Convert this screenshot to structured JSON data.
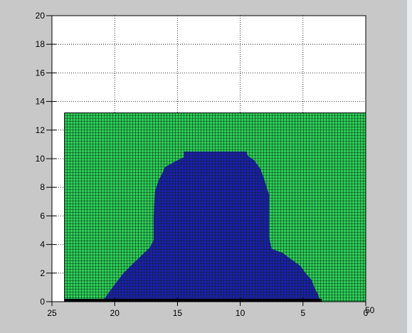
{
  "chart_data": {
    "type": "heatmap",
    "title": "",
    "xlabel": "",
    "ylabel": "",
    "x_direction": "reversed",
    "xlim": [
      0,
      25
    ],
    "ylim": [
      0,
      20
    ],
    "grid": true,
    "x_ticks": [
      "25",
      "20",
      "15",
      "10",
      "5",
      "0"
    ],
    "y_ticks": [
      "0",
      "2",
      "4",
      "6",
      "8",
      "10",
      "12",
      "14",
      "16",
      "18",
      "20"
    ],
    "extra_axis_label": "50",
    "surface": {
      "x_range": [
        0,
        24
      ],
      "height": 13.2,
      "color": "#2ecf5a"
    },
    "dark_region": {
      "color": "#1d1db2",
      "outline": [
        [
          3.6,
          0
        ],
        [
          3.8,
          0.5
        ],
        [
          4.1,
          1
        ],
        [
          4.3,
          1.5
        ],
        [
          4.8,
          2
        ],
        [
          5.2,
          2.5
        ],
        [
          6,
          3
        ],
        [
          6.6,
          3.4
        ],
        [
          7.5,
          3.7
        ],
        [
          7.7,
          4.5
        ],
        [
          7.7,
          6
        ],
        [
          7.7,
          7.5
        ],
        [
          7.9,
          8
        ],
        [
          8.1,
          8.6
        ],
        [
          8.4,
          9.3
        ],
        [
          8.9,
          9.9
        ],
        [
          9.4,
          10.2
        ],
        [
          9.5,
          10.5
        ],
        [
          14.5,
          10.5
        ],
        [
          14.5,
          10.1
        ],
        [
          15.2,
          9.8
        ],
        [
          16,
          9.4
        ],
        [
          16.2,
          9
        ],
        [
          16.5,
          8.5
        ],
        [
          16.8,
          7.7
        ],
        [
          16.9,
          6
        ],
        [
          16.9,
          4.3
        ],
        [
          17.2,
          3.8
        ],
        [
          17.9,
          3.2
        ],
        [
          18.5,
          2.7
        ],
        [
          19.3,
          2
        ],
        [
          20,
          1.2
        ],
        [
          20.5,
          0.6
        ],
        [
          21,
          0
        ]
      ]
    },
    "base_line": {
      "x_range": [
        3.5,
        24
      ],
      "color": "#000000"
    }
  }
}
